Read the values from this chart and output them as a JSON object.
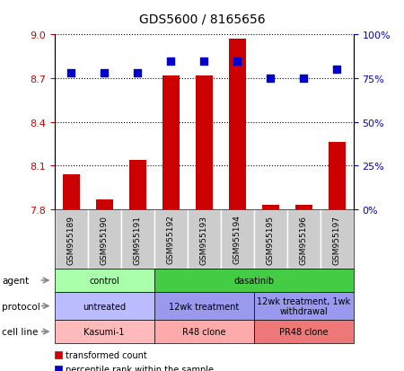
{
  "title": "GDS5600 / 8165656",
  "samples": [
    "GSM955189",
    "GSM955190",
    "GSM955191",
    "GSM955192",
    "GSM955193",
    "GSM955194",
    "GSM955195",
    "GSM955196",
    "GSM955197"
  ],
  "transformed_counts": [
    8.04,
    7.87,
    8.14,
    8.72,
    8.72,
    8.97,
    7.83,
    7.83,
    8.26
  ],
  "percentile_ranks": [
    78,
    78,
    78,
    85,
    85,
    85,
    75,
    75,
    80
  ],
  "ylim_left": [
    7.8,
    9.0
  ],
  "yticks_left": [
    7.8,
    8.1,
    8.4,
    8.7,
    9.0
  ],
  "ylim_right": [
    0,
    100
  ],
  "yticks_right": [
    0,
    25,
    50,
    75,
    100
  ],
  "yticklabels_right": [
    "0%",
    "25%",
    "50%",
    "75%",
    "100%"
  ],
  "bar_color": "#cc0000",
  "dot_color": "#0000cc",
  "agent_groups": [
    {
      "label": "control",
      "start": 0,
      "end": 3,
      "color": "#aaffaa"
    },
    {
      "label": "dasatinib",
      "start": 3,
      "end": 9,
      "color": "#44cc44"
    }
  ],
  "protocol_groups": [
    {
      "label": "untreated",
      "start": 0,
      "end": 3,
      "color": "#bbbbff"
    },
    {
      "label": "12wk treatment",
      "start": 3,
      "end": 6,
      "color": "#9999ee"
    },
    {
      "label": "12wk treatment, 1wk\nwithdrawal",
      "start": 6,
      "end": 9,
      "color": "#9999ee"
    }
  ],
  "cell_line_groups": [
    {
      "label": "Kasumi-1",
      "start": 0,
      "end": 3,
      "color": "#ffbbbb"
    },
    {
      "label": "R48 clone",
      "start": 3,
      "end": 6,
      "color": "#ffaaaa"
    },
    {
      "label": "PR48 clone",
      "start": 6,
      "end": 9,
      "color": "#ee7777"
    }
  ],
  "row_labels": [
    "agent",
    "protocol",
    "cell line"
  ],
  "legend_bar_label": "transformed count",
  "legend_dot_label": "percentile rank within the sample",
  "background_color": "#ffffff",
  "label_left_color": "#cc0000",
  "label_right_color": "#0000cc"
}
